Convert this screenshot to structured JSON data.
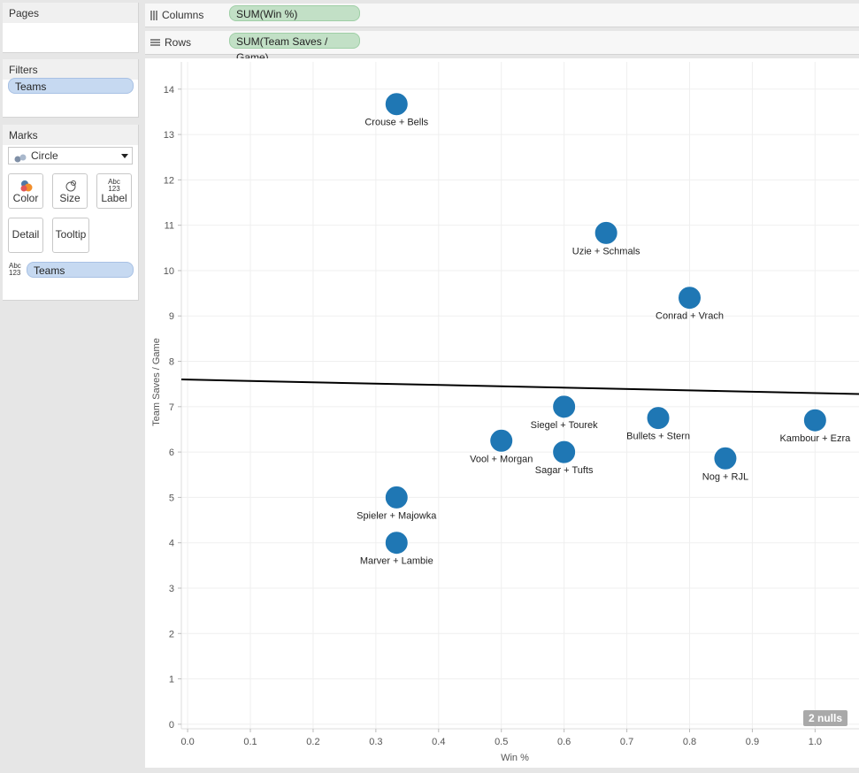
{
  "pages": {
    "title": "Pages"
  },
  "filters": {
    "title": "Filters",
    "items": [
      "Teams"
    ]
  },
  "marks": {
    "title": "Marks",
    "mark_type": "Circle",
    "buttons": {
      "color": "Color",
      "size": "Size",
      "label": "Label",
      "detail": "Detail",
      "tooltip": "Tooltip"
    },
    "label_icon_text": "Abc 123",
    "label_field": "Teams"
  },
  "columns_shelf": {
    "label": "Columns",
    "pill": "SUM(Win %)"
  },
  "rows_shelf": {
    "label": "Rows",
    "pill": "SUM(Team Saves / Game)"
  },
  "nulls_badge": "2 nulls",
  "colors": {
    "mark": "#1f77b4",
    "trend": "#000000",
    "pill_blue": "#c6d9f1",
    "pill_green": "#c2e0c6"
  },
  "chart_data": {
    "type": "scatter",
    "title": "",
    "xlabel": "Win %",
    "ylabel": "Team Saves / Game",
    "xlim": [
      -0.01,
      1.07
    ],
    "ylim": [
      -0.1,
      14.6
    ],
    "x_ticks": [
      0.0,
      0.1,
      0.2,
      0.3,
      0.4,
      0.5,
      0.6,
      0.7,
      0.8,
      0.9,
      1.0
    ],
    "x_tick_labels": [
      "0.0",
      "0.1",
      "0.2",
      "0.3",
      "0.4",
      "0.5",
      "0.6",
      "0.7",
      "0.8",
      "0.9",
      "1.0"
    ],
    "y_ticks": [
      0,
      1,
      2,
      3,
      4,
      5,
      6,
      7,
      8,
      9,
      10,
      11,
      12,
      13,
      14
    ],
    "grid": true,
    "points": [
      {
        "label": "Crouse + Bells",
        "x": 0.333,
        "y": 13.67
      },
      {
        "label": "Uzie + Schmals",
        "x": 0.667,
        "y": 10.83
      },
      {
        "label": "Conrad + Vrach",
        "x": 0.8,
        "y": 9.4
      },
      {
        "label": "Siegel + Tourek",
        "x": 0.6,
        "y": 7.0
      },
      {
        "label": "Bullets + Stern",
        "x": 0.75,
        "y": 6.75
      },
      {
        "label": "Kambour + Ezra",
        "x": 1.0,
        "y": 6.7
      },
      {
        "label": "Vool + Morgan",
        "x": 0.5,
        "y": 6.25
      },
      {
        "label": "Sagar + Tufts",
        "x": 0.6,
        "y": 6.0
      },
      {
        "label": "Nog + RJL",
        "x": 0.857,
        "y": 5.86
      },
      {
        "label": "Spieler + Majowka",
        "x": 0.333,
        "y": 5.0
      },
      {
        "label": "Marver + Lambie",
        "x": 0.333,
        "y": 4.0
      }
    ],
    "trend_line": {
      "x": [
        -0.01,
        1.07
      ],
      "y": [
        7.6,
        7.28
      ]
    }
  }
}
